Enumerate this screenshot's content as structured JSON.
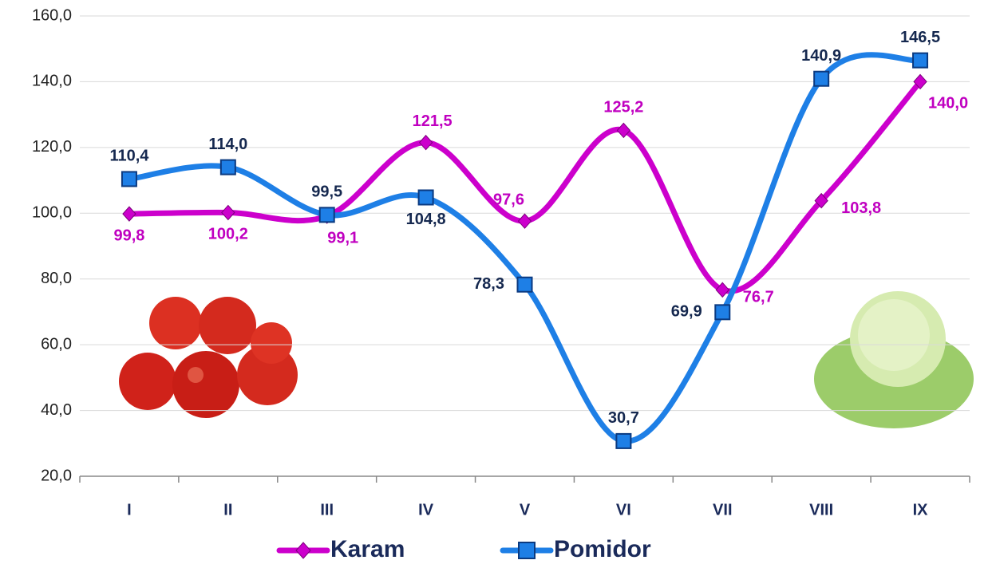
{
  "chart_data": {
    "type": "line",
    "categories": [
      "I",
      "II",
      "III",
      "IV",
      "V",
      "VI",
      "VII",
      "VIII",
      "IX"
    ],
    "series": [
      {
        "name": "Karam",
        "color": "#cc00cc",
        "values": [
          99.8,
          100.2,
          99.1,
          121.5,
          97.6,
          125.2,
          76.7,
          103.8,
          140.0
        ],
        "value_labels": [
          "99,8",
          "100,2",
          "99,1",
          "121,5",
          "97,6",
          "125,2",
          "76,7",
          "103,8",
          "140,0"
        ]
      },
      {
        "name": "Pomidor",
        "color": "#1e7fe6",
        "values": [
          110.4,
          114.0,
          99.5,
          104.8,
          78.3,
          30.7,
          69.9,
          140.9,
          146.5
        ],
        "value_labels": [
          "110,4",
          "114,0",
          "99,5",
          "104,8",
          "78,3",
          "30,7",
          "69,9",
          "140,9",
          "146,5"
        ]
      }
    ],
    "ylim": [
      20,
      160
    ],
    "yticks": [
      {
        "value": 20,
        "label": "20,0"
      },
      {
        "value": 40,
        "label": "40,0"
      },
      {
        "value": 60,
        "label": "60,0"
      },
      {
        "value": 80,
        "label": "80,0"
      },
      {
        "value": 100,
        "label": "100,0"
      },
      {
        "value": 120,
        "label": "120,0"
      },
      {
        "value": 140,
        "label": "140,0"
      },
      {
        "value": 160,
        "label": "160,0"
      }
    ],
    "grid": true,
    "legend": "bottom"
  }
}
